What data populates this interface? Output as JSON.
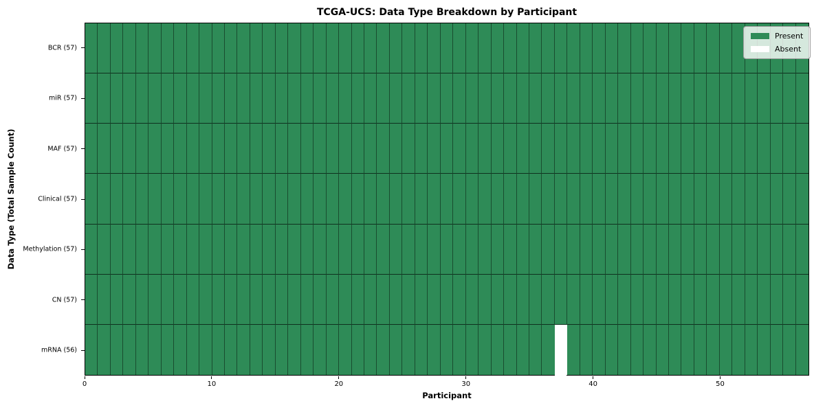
{
  "chart_data": {
    "type": "heatmap",
    "title": "TCGA-UCS: Data Type Breakdown by Participant",
    "xlabel": "Participant",
    "ylabel": "Data Type (Total Sample Count)",
    "n_participants": 57,
    "x_range": [
      0,
      57
    ],
    "x_ticks": [
      0,
      10,
      20,
      30,
      40,
      50
    ],
    "grid": true,
    "legend_position": "upper right",
    "rows": [
      {
        "label": "BCR (57)",
        "data_type": "BCR",
        "present_count": 57,
        "absent_participants": []
      },
      {
        "label": "miR (57)",
        "data_type": "miR",
        "present_count": 57,
        "absent_participants": []
      },
      {
        "label": "MAF (57)",
        "data_type": "MAF",
        "present_count": 57,
        "absent_participants": []
      },
      {
        "label": "Clinical (57)",
        "data_type": "Clinical",
        "present_count": 57,
        "absent_participants": []
      },
      {
        "label": "Methylation (57)",
        "data_type": "Methylation",
        "present_count": 57,
        "absent_participants": []
      },
      {
        "label": "CN (57)",
        "data_type": "CN",
        "present_count": 57,
        "absent_participants": []
      },
      {
        "label": "mRNA (56)",
        "data_type": "mRNA",
        "present_count": 56,
        "absent_participants": [
          37
        ]
      }
    ],
    "legend": [
      {
        "label": "Present",
        "color": "#2e8b57"
      },
      {
        "label": "Absent",
        "color": "#ffffff"
      }
    ],
    "colors": {
      "present": "#2e8b57",
      "absent": "#ffffff",
      "grid_line": "rgba(0,0,0,0.5)",
      "spine": "#000000"
    }
  }
}
